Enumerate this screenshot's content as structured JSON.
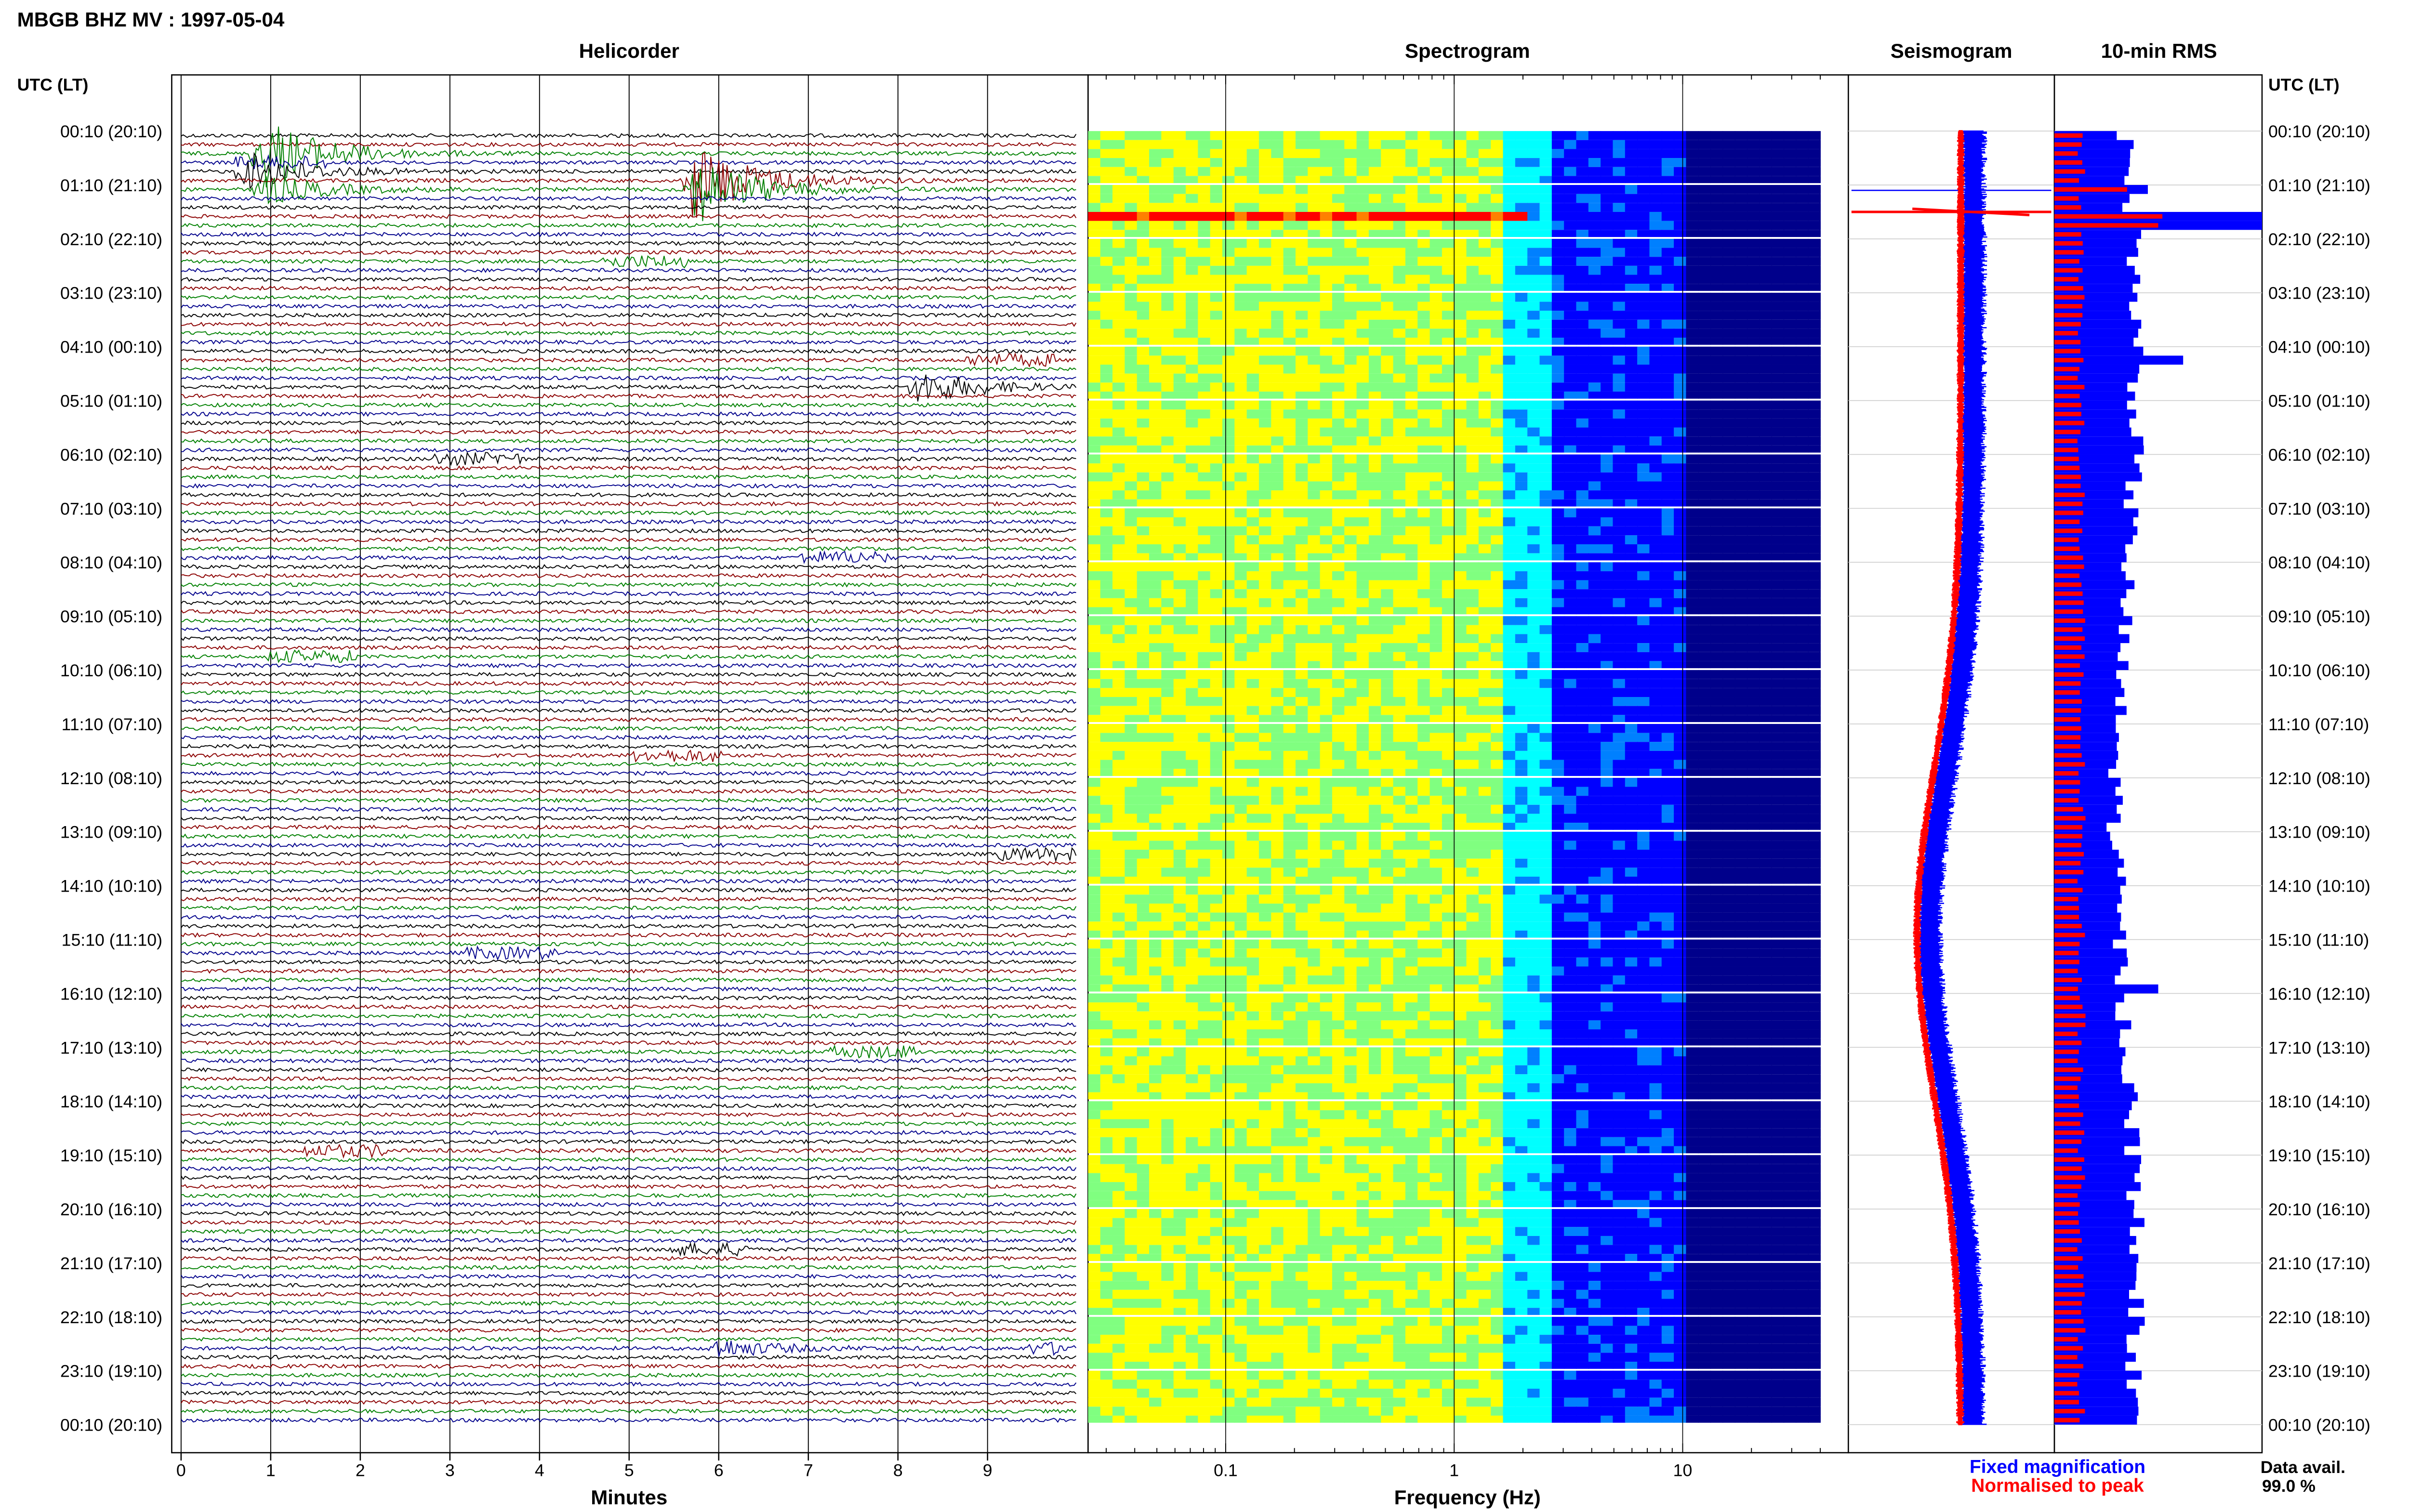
{
  "figure": {
    "station_title": "MBGB BHZ MV : 1997-05-04",
    "left_axis_header": "UTC (LT)",
    "right_axis_header": "UTC (LT)",
    "legend": {
      "fixed": "Fixed magnification",
      "normalised": "Normalised to peak",
      "fixed_color": "#0000ff",
      "normalised_color": "#ff0000"
    },
    "availability": {
      "label": "Data avail.",
      "value": "99.0 %"
    }
  },
  "chart_data": [
    {
      "type": "line",
      "title": "Helicorder",
      "xlabel": "Minutes",
      "xlim": [
        0,
        10
      ],
      "x_ticks": [
        "0",
        "1",
        "2",
        "3",
        "4",
        "5",
        "6",
        "7",
        "8",
        "9"
      ],
      "rows_per_hour": 6,
      "trace_colors": [
        "#000000",
        "#8b0000",
        "#008000",
        "#00008b"
      ],
      "time_labels": [
        "00:10 (20:10)",
        "01:10 (21:10)",
        "02:10 (22:10)",
        "03:10 (23:10)",
        "04:10 (00:10)",
        "05:10 (01:10)",
        "06:10 (02:10)",
        "07:10 (03:10)",
        "08:10 (04:10)",
        "09:10 (05:10)",
        "10:10 (06:10)",
        "11:10 (07:10)",
        "12:10 (08:10)",
        "13:10 (09:10)",
        "14:10 (10:10)",
        "15:10 (11:10)",
        "16:10 (12:10)",
        "17:10 (13:10)",
        "18:10 (14:10)",
        "19:10 (15:10)",
        "20:10 (16:10)",
        "21:10 (17:10)",
        "22:10 (18:10)",
        "23:10 (19:10)",
        "00:10 (20:10)"
      ],
      "events": [
        {
          "row": 2,
          "minute": 0.85,
          "amplitude": 1.0
        },
        {
          "row": 4,
          "minute": 0.7,
          "amplitude": 0.5
        },
        {
          "row": 5,
          "minute": 5.7,
          "amplitude": 1.0
        },
        {
          "row": 6,
          "minute": 5.7,
          "amplitude": 0.9
        },
        {
          "row": 6,
          "minute": 0.9,
          "amplitude": 0.4
        },
        {
          "row": 28,
          "minute": 8.2,
          "amplitude": 0.45
        },
        {
          "row": 135,
          "minute": 5.95,
          "amplitude": 0.25
        }
      ]
    },
    {
      "type": "heatmap",
      "title": "Spectrogram",
      "xlabel": "Frequency (Hz)",
      "x_scale": "log",
      "xlim": [
        0.025,
        40
      ],
      "x_ticks": [
        "0.1",
        "1",
        "10"
      ],
      "x_tick_values": [
        0.1,
        1,
        10
      ],
      "colormap": [
        "#00008b",
        "#0000ff",
        "#0080ff",
        "#00ffff",
        "#80ff80",
        "#ffff00",
        "#ff8000",
        "#ff0000"
      ]
    },
    {
      "type": "line",
      "title": "Seismogram",
      "series": [
        {
          "name": "Fixed magnification",
          "color": "#0000ff"
        },
        {
          "name": "Normalised to peak",
          "color": "#ff0000"
        }
      ],
      "spike_row": 9
    },
    {
      "type": "bar",
      "title": "10-min RMS",
      "orientation": "horizontal",
      "series": [
        {
          "name": "Fixed magnification",
          "color": "#0000ff",
          "peak_rows": [
            {
              "row": 6,
              "value": 0.45
            },
            {
              "row": 9,
              "value": 1.0
            },
            {
              "row": 10,
              "value": 1.0
            }
          ]
        },
        {
          "name": "Normalised to peak",
          "color": "#ff0000",
          "peak_rows": [
            {
              "row": 6,
              "value": 0.35
            },
            {
              "row": 9,
              "value": 0.52
            },
            {
              "row": 10,
              "value": 0.5
            }
          ]
        }
      ]
    }
  ]
}
